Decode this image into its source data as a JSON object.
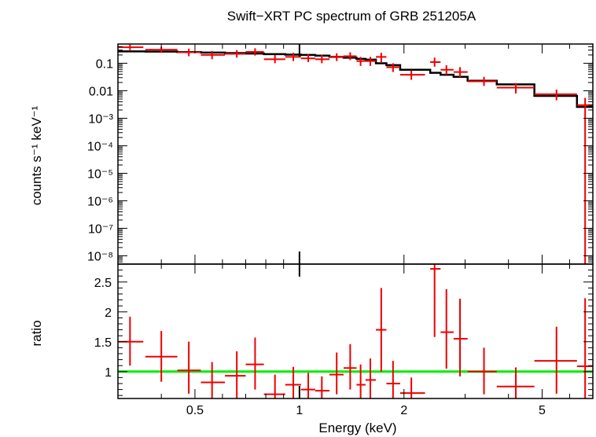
{
  "colors": {
    "model": "#000000",
    "data": "#ee0000",
    "unity": "#00ee00",
    "axis": "#000000"
  },
  "chart_data": [
    {
      "type": "scatter",
      "panel": "spectrum",
      "title": "Swift−XRT PC spectrum of GRB 251205A",
      "xlabel": "",
      "ylabel": "counts s⁻¹ keV⁻¹",
      "xscale": "log",
      "yscale": "log",
      "xlim": [
        0.3,
        7.0
      ],
      "ylim": [
        5e-09,
        0.5
      ],
      "grid": false,
      "ytick_labels": [
        "0.1",
        "0.01",
        "10⁻³",
        "10⁻⁴",
        "10⁻⁵",
        "10⁻⁶",
        "10⁻⁷",
        "10⁻⁸"
      ],
      "ytick_values": [
        0.1,
        0.01,
        0.001,
        0.0001,
        1e-05,
        1e-06,
        1e-07,
        1e-08
      ],
      "series": [
        {
          "kind": "data",
          "points": [
            {
              "x": 0.325,
              "xlo": 0.3,
              "xhi": 0.355,
              "y": 0.38,
              "ylo": 0.3,
              "yhi": 0.48
            },
            {
              "x": 0.4,
              "xlo": 0.36,
              "xhi": 0.445,
              "y": 0.31,
              "ylo": 0.24,
              "yhi": 0.4
            },
            {
              "x": 0.48,
              "xlo": 0.445,
              "xhi": 0.52,
              "y": 0.25,
              "ylo": 0.18,
              "yhi": 0.34
            },
            {
              "x": 0.56,
              "xlo": 0.52,
              "xhi": 0.61,
              "y": 0.2,
              "ylo": 0.14,
              "yhi": 0.28
            },
            {
              "x": 0.66,
              "xlo": 0.61,
              "xhi": 0.7,
              "y": 0.22,
              "ylo": 0.16,
              "yhi": 0.3
            },
            {
              "x": 0.745,
              "xlo": 0.7,
              "xhi": 0.79,
              "y": 0.26,
              "ylo": 0.19,
              "yhi": 0.35
            },
            {
              "x": 0.85,
              "xlo": 0.79,
              "xhi": 0.91,
              "y": 0.14,
              "ylo": 0.1,
              "yhi": 0.2
            },
            {
              "x": 0.96,
              "xlo": 0.91,
              "xhi": 1.01,
              "y": 0.17,
              "ylo": 0.12,
              "yhi": 0.24
            },
            {
              "x": 1.06,
              "xlo": 1.01,
              "xhi": 1.11,
              "y": 0.15,
              "ylo": 0.11,
              "yhi": 0.21
            },
            {
              "x": 1.16,
              "xlo": 1.11,
              "xhi": 1.22,
              "y": 0.14,
              "ylo": 0.1,
              "yhi": 0.2
            },
            {
              "x": 1.28,
              "xlo": 1.22,
              "xhi": 1.34,
              "y": 0.17,
              "ylo": 0.12,
              "yhi": 0.23
            },
            {
              "x": 1.4,
              "xlo": 1.34,
              "xhi": 1.46,
              "y": 0.18,
              "ylo": 0.13,
              "yhi": 0.25
            },
            {
              "x": 1.5,
              "xlo": 1.46,
              "xhi": 1.55,
              "y": 0.12,
              "ylo": 0.08,
              "yhi": 0.17
            },
            {
              "x": 1.6,
              "xlo": 1.55,
              "xhi": 1.66,
              "y": 0.12,
              "ylo": 0.08,
              "yhi": 0.17
            },
            {
              "x": 1.72,
              "xlo": 1.66,
              "xhi": 1.78,
              "y": 0.17,
              "ylo": 0.11,
              "yhi": 0.24
            },
            {
              "x": 1.86,
              "xlo": 1.78,
              "xhi": 1.95,
              "y": 0.072,
              "ylo": 0.048,
              "yhi": 0.1
            },
            {
              "x": 2.1,
              "xlo": 1.95,
              "xhi": 2.3,
              "y": 0.038,
              "ylo": 0.025,
              "yhi": 0.055
            },
            {
              "x": 2.45,
              "xlo": 2.38,
              "xhi": 2.55,
              "y": 0.11,
              "ylo": 0.075,
              "yhi": 0.16
            },
            {
              "x": 2.65,
              "xlo": 2.55,
              "xhi": 2.78,
              "y": 0.058,
              "ylo": 0.038,
              "yhi": 0.085
            },
            {
              "x": 2.9,
              "xlo": 2.78,
              "xhi": 3.05,
              "y": 0.048,
              "ylo": 0.031,
              "yhi": 0.072
            },
            {
              "x": 3.4,
              "xlo": 3.05,
              "xhi": 3.7,
              "y": 0.022,
              "ylo": 0.015,
              "yhi": 0.032
            },
            {
              "x": 4.2,
              "xlo": 3.7,
              "xhi": 4.75,
              "y": 0.013,
              "ylo": 0.008,
              "yhi": 0.019
            },
            {
              "x": 5.5,
              "xlo": 4.75,
              "xhi": 6.3,
              "y": 0.0075,
              "ylo": 0.0045,
              "yhi": 0.011
            },
            {
              "x": 6.65,
              "xlo": 6.3,
              "xhi": 7.0,
              "y": 0.003,
              "ylo": 5e-09,
              "yhi": 0.0055
            }
          ]
        },
        {
          "kind": "model",
          "steps": [
            {
              "x0": 0.3,
              "x1": 0.36,
              "y": 0.27
            },
            {
              "x0": 0.36,
              "x1": 0.445,
              "y": 0.265
            },
            {
              "x0": 0.445,
              "x1": 0.52,
              "y": 0.255
            },
            {
              "x0": 0.52,
              "x1": 0.61,
              "y": 0.245
            },
            {
              "x0": 0.61,
              "x1": 0.7,
              "y": 0.235
            },
            {
              "x0": 0.7,
              "x1": 0.79,
              "y": 0.225
            },
            {
              "x0": 0.79,
              "x1": 0.91,
              "y": 0.215
            },
            {
              "x0": 0.91,
              "x1": 1.01,
              "y": 0.205
            },
            {
              "x0": 1.01,
              "x1": 1.11,
              "y": 0.2
            },
            {
              "x0": 1.11,
              "x1": 1.22,
              "y": 0.19
            },
            {
              "x0": 1.22,
              "x1": 1.34,
              "y": 0.17
            },
            {
              "x0": 1.34,
              "x1": 1.46,
              "y": 0.16
            },
            {
              "x0": 1.46,
              "x1": 1.55,
              "y": 0.145
            },
            {
              "x0": 1.55,
              "x1": 1.66,
              "y": 0.135
            },
            {
              "x0": 1.66,
              "x1": 1.78,
              "y": 0.1
            },
            {
              "x0": 1.78,
              "x1": 1.95,
              "y": 0.085
            },
            {
              "x0": 1.95,
              "x1": 2.38,
              "y": 0.058
            },
            {
              "x0": 2.38,
              "x1": 2.55,
              "y": 0.045
            },
            {
              "x0": 2.55,
              "x1": 2.78,
              "y": 0.038
            },
            {
              "x0": 2.78,
              "x1": 3.05,
              "y": 0.032
            },
            {
              "x0": 3.05,
              "x1": 3.7,
              "y": 0.023
            },
            {
              "x0": 3.7,
              "x1": 4.75,
              "y": 0.017
            },
            {
              "x0": 4.75,
              "x1": 6.3,
              "y": 0.0065
            },
            {
              "x0": 6.3,
              "x1": 7.0,
              "y": 0.0026
            }
          ]
        }
      ]
    },
    {
      "type": "scatter",
      "panel": "ratio",
      "xlabel": "Energy (keV)",
      "ylabel": "ratio",
      "xscale": "log",
      "yscale": "linear",
      "xlim": [
        0.3,
        7.0
      ],
      "ylim": [
        0.55,
        2.8
      ],
      "grid": false,
      "xtick_labels": [
        "0.5",
        "1",
        "2",
        "5"
      ],
      "xtick_values": [
        0.5,
        1,
        2,
        5
      ],
      "ytick_labels": [
        "1",
        "1.5",
        "2",
        "2.5"
      ],
      "ytick_values": [
        1,
        1.5,
        2,
        2.5
      ],
      "reference_line": 1.0,
      "series": [
        {
          "kind": "data",
          "points": [
            {
              "x": 0.325,
              "xlo": 0.3,
              "xhi": 0.355,
              "y": 1.5,
              "ylo": 1.1,
              "yhi": 1.92
            },
            {
              "x": 0.4,
              "xlo": 0.36,
              "xhi": 0.445,
              "y": 1.25,
              "ylo": 0.83,
              "yhi": 1.68
            },
            {
              "x": 0.48,
              "xlo": 0.445,
              "xhi": 0.52,
              "y": 1.02,
              "ylo": 0.63,
              "yhi": 1.5
            },
            {
              "x": 0.56,
              "xlo": 0.52,
              "xhi": 0.61,
              "y": 0.82,
              "ylo": 0.55,
              "yhi": 1.16
            },
            {
              "x": 0.66,
              "xlo": 0.61,
              "xhi": 0.7,
              "y": 0.93,
              "ylo": 0.55,
              "yhi": 1.34
            },
            {
              "x": 0.745,
              "xlo": 0.7,
              "xhi": 0.79,
              "y": 1.12,
              "ylo": 0.7,
              "yhi": 1.57
            },
            {
              "x": 0.85,
              "xlo": 0.79,
              "xhi": 0.91,
              "y": 0.62,
              "ylo": 0.55,
              "yhi": 0.95
            },
            {
              "x": 0.96,
              "xlo": 0.91,
              "xhi": 1.01,
              "y": 0.78,
              "ylo": 0.55,
              "yhi": 1.08
            },
            {
              "x": 1.06,
              "xlo": 1.01,
              "xhi": 1.11,
              "y": 0.7,
              "ylo": 0.55,
              "yhi": 0.98
            },
            {
              "x": 1.16,
              "xlo": 1.11,
              "xhi": 1.22,
              "y": 0.68,
              "ylo": 0.55,
              "yhi": 0.92
            },
            {
              "x": 1.28,
              "xlo": 1.22,
              "xhi": 1.34,
              "y": 0.95,
              "ylo": 0.62,
              "yhi": 1.32
            },
            {
              "x": 1.4,
              "xlo": 1.34,
              "xhi": 1.46,
              "y": 1.06,
              "ylo": 0.7,
              "yhi": 1.46
            },
            {
              "x": 1.5,
              "xlo": 1.46,
              "xhi": 1.55,
              "y": 0.78,
              "ylo": 0.55,
              "yhi": 1.12
            },
            {
              "x": 1.6,
              "xlo": 1.55,
              "xhi": 1.66,
              "y": 0.86,
              "ylo": 0.55,
              "yhi": 1.22
            },
            {
              "x": 1.72,
              "xlo": 1.66,
              "xhi": 1.78,
              "y": 1.7,
              "ylo": 1.0,
              "yhi": 2.4
            },
            {
              "x": 1.86,
              "xlo": 1.78,
              "xhi": 1.95,
              "y": 0.8,
              "ylo": 0.55,
              "yhi": 1.18
            },
            {
              "x": 2.1,
              "xlo": 1.95,
              "xhi": 2.3,
              "y": 0.64,
              "ylo": 0.55,
              "yhi": 0.9
            },
            {
              "x": 2.45,
              "xlo": 2.38,
              "xhi": 2.55,
              "y": 2.72,
              "ylo": 1.58,
              "yhi": 2.8
            },
            {
              "x": 2.65,
              "xlo": 2.55,
              "xhi": 2.78,
              "y": 1.66,
              "ylo": 1.05,
              "yhi": 2.38
            },
            {
              "x": 2.9,
              "xlo": 2.78,
              "xhi": 3.05,
              "y": 1.55,
              "ylo": 0.92,
              "yhi": 2.22
            },
            {
              "x": 3.4,
              "xlo": 3.05,
              "xhi": 3.7,
              "y": 1.0,
              "ylo": 0.62,
              "yhi": 1.4
            },
            {
              "x": 4.2,
              "xlo": 3.7,
              "xhi": 4.75,
              "y": 0.75,
              "ylo": 0.55,
              "yhi": 1.07
            },
            {
              "x": 5.5,
              "xlo": 4.75,
              "xhi": 6.3,
              "y": 1.18,
              "ylo": 0.63,
              "yhi": 1.75
            },
            {
              "x": 6.65,
              "xlo": 6.3,
              "xhi": 7.0,
              "y": 1.09,
              "ylo": 0.55,
              "yhi": 2.23
            }
          ]
        }
      ]
    }
  ]
}
